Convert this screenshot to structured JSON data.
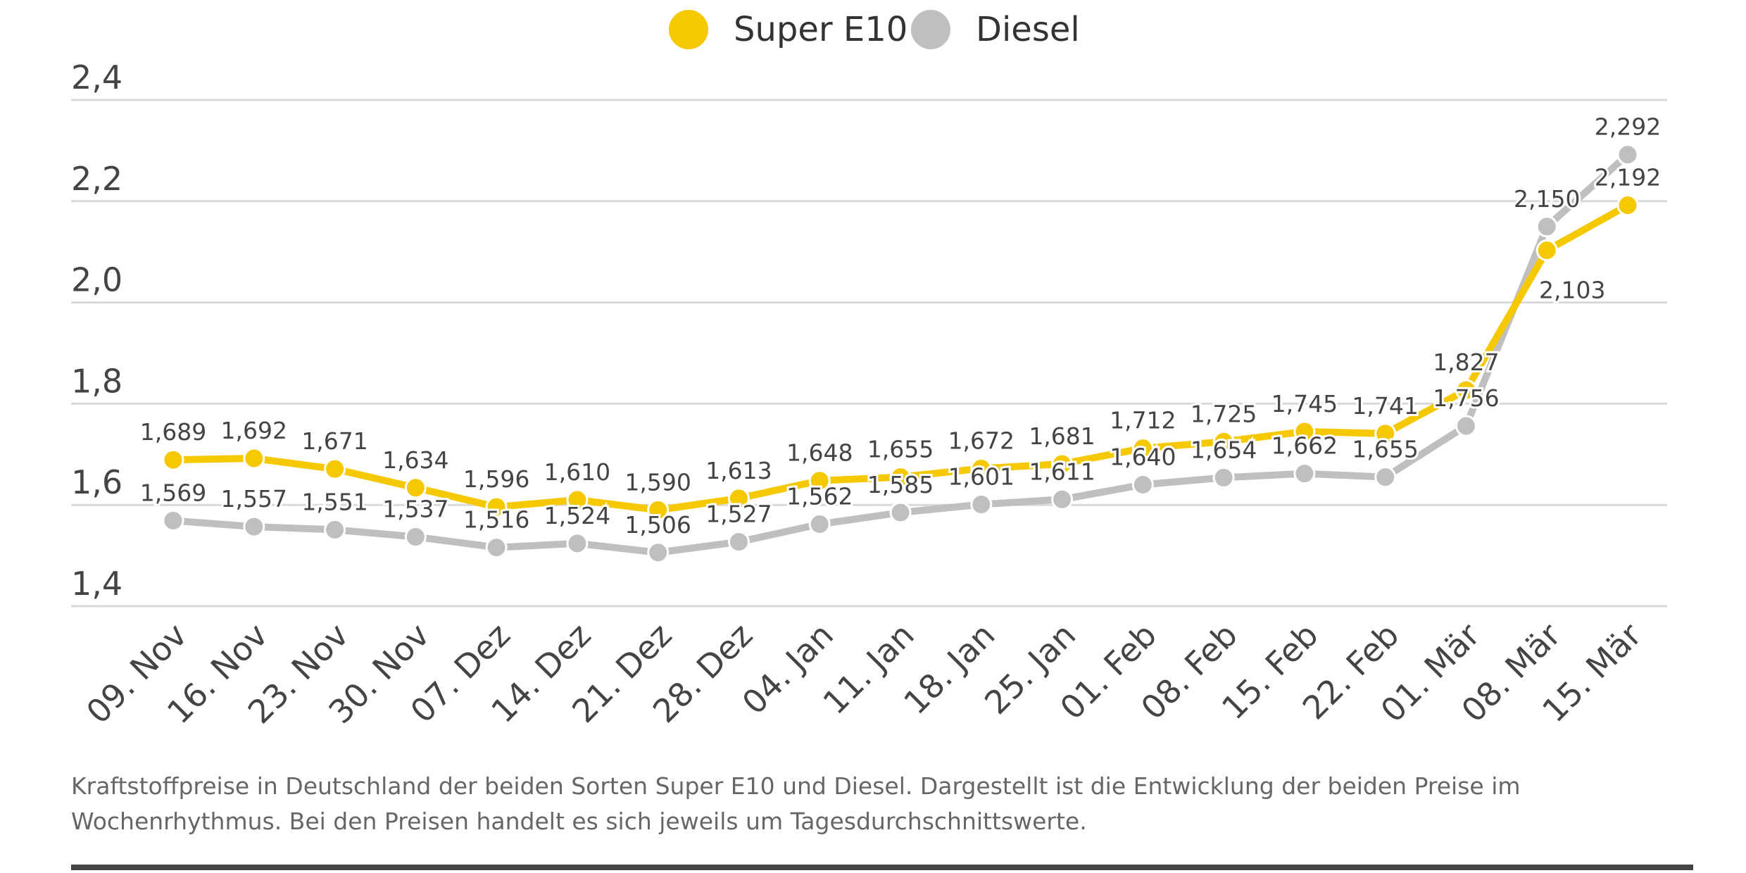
{
  "chart_data": {
    "type": "line",
    "categories": [
      "09. Nov",
      "16. Nov",
      "23. Nov",
      "30. Nov",
      "07. Dez",
      "14. Dez",
      "21. Dez",
      "28. Dez",
      "04. Jan",
      "11. Jan",
      "18. Jan",
      "25. Jan",
      "01. Feb",
      "08. Feb",
      "15. Feb",
      "22. Feb",
      "01. Mär",
      "08. Mär",
      "15. Mär"
    ],
    "series": [
      {
        "name": "Super E10",
        "color": "#F5C800",
        "values": [
          1.689,
          1.692,
          1.671,
          1.634,
          1.596,
          1.61,
          1.59,
          1.613,
          1.648,
          1.655,
          1.672,
          1.681,
          1.712,
          1.725,
          1.745,
          1.741,
          1.827,
          2.103,
          2.192
        ],
        "labels": [
          "1,689",
          "1,692",
          "1,671",
          "1,634",
          "1,596",
          "1,610",
          "1,590",
          "1,613",
          "1,648",
          "1,655",
          "1,672",
          "1,681",
          "1,712",
          "1,725",
          "1,745",
          "1,741",
          "1,827",
          "2,103",
          "2,192"
        ]
      },
      {
        "name": "Diesel",
        "color": "#BFBFBF",
        "values": [
          1.569,
          1.557,
          1.551,
          1.537,
          1.516,
          1.524,
          1.506,
          1.527,
          1.562,
          1.585,
          1.601,
          1.611,
          1.64,
          1.654,
          1.662,
          1.655,
          1.756,
          2.15,
          2.292
        ],
        "labels": [
          "1,569",
          "1,557",
          "1,551",
          "1,537",
          "1,516",
          "1,524",
          "1,506",
          "1,527",
          "1,562",
          "1,585",
          "1,601",
          "1,611",
          "1,640",
          "1,654",
          "1,662",
          "1,655",
          "1,756",
          "2,150",
          "2,292"
        ]
      }
    ],
    "yticks": [
      1.4,
      1.6,
      1.8,
      2.0,
      2.2,
      2.4
    ],
    "ytick_labels": [
      "1,4",
      "1,6",
      "1,8",
      "2,0",
      "2,2",
      "2,4"
    ],
    "ylim": [
      1.4,
      2.4
    ],
    "grid": true,
    "legend_position": "top-center"
  },
  "caption": "Kraftstoffpreise in Deutschland der beiden Sorten Super E10 und Diesel. Dargestellt ist die Entwicklung der beiden Preise im Wochenrhythmus. Bei den Preisen handelt es sich jeweils um Tagesdurchschnittswerte."
}
